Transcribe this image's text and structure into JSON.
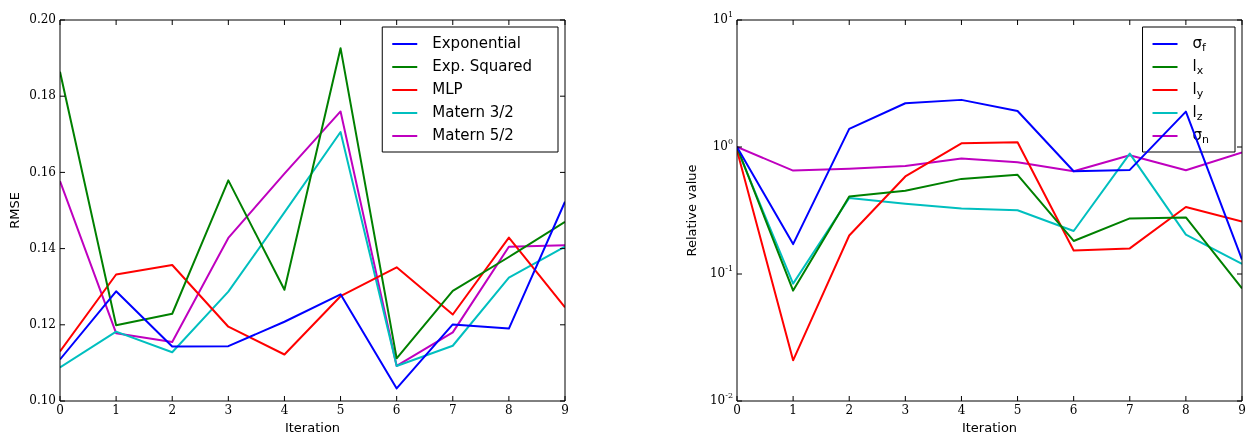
{
  "chart_data": [
    {
      "type": "line",
      "xlabel": "Iteration",
      "ylabel": "RMSE",
      "x": [
        0,
        1,
        2,
        3,
        4,
        5,
        6,
        7,
        8,
        9
      ],
      "xlim": [
        0,
        9
      ],
      "xticks": [
        0,
        1,
        2,
        3,
        4,
        5,
        6,
        7,
        8,
        9
      ],
      "ylim": [
        0.1,
        0.2
      ],
      "yticks": [
        {
          "value": 0.1,
          "label": "0.10"
        },
        {
          "value": 0.12,
          "label": "0.12"
        },
        {
          "value": 0.14,
          "label": "0.14"
        },
        {
          "value": 0.16,
          "label": "0.16"
        },
        {
          "value": 0.18,
          "label": "0.18"
        },
        {
          "value": 0.2,
          "label": "0.20"
        }
      ],
      "legend": "top right",
      "series": [
        {
          "name": "Exponential",
          "color": "#0000ff",
          "values": [
            0.1109,
            0.1288,
            0.1143,
            0.1144,
            0.1208,
            0.128,
            0.1033,
            0.1201,
            0.119,
            0.1523
          ]
        },
        {
          "name": "Exp. Squared",
          "color": "#008000",
          "values": [
            0.1864,
            0.1199,
            0.1229,
            0.1579,
            0.1292,
            0.1926,
            0.1112,
            0.1289,
            0.1378,
            0.147
          ]
        },
        {
          "name": "MLP",
          "color": "#ff0000",
          "values": [
            0.113,
            0.1332,
            0.1357,
            0.1195,
            0.1122,
            0.1275,
            0.1351,
            0.1227,
            0.1429,
            0.1246
          ]
        },
        {
          "name": "Matern 3/2",
          "color": "#00bfbf",
          "values": [
            0.1088,
            0.1182,
            0.1128,
            0.1287,
            0.1495,
            0.1706,
            0.1092,
            0.1145,
            0.1324,
            0.1405
          ]
        },
        {
          "name": "Matern 5/2",
          "color": "#bf00bf",
          "values": [
            0.1577,
            0.1178,
            0.1155,
            0.1428,
            0.1597,
            0.176,
            0.1092,
            0.118,
            0.1405,
            0.1409
          ]
        }
      ]
    },
    {
      "type": "line",
      "xlabel": "Iteration",
      "ylabel": "Relative value",
      "x": [
        0,
        1,
        2,
        3,
        4,
        5,
        6,
        7,
        8,
        9
      ],
      "xlim": [
        0,
        9
      ],
      "xticks": [
        0,
        1,
        2,
        3,
        4,
        5,
        6,
        7,
        8,
        9
      ],
      "ylim": [
        0.01,
        10
      ],
      "yticks": [
        {
          "value": 0.01,
          "label": "10$^{-2}$"
        },
        {
          "value": 0.1,
          "label": "10$^{-1}$"
        },
        {
          "value": 1,
          "label": "10$^{0}$"
        },
        {
          "value": 10,
          "label": "10$^{1}$"
        }
      ],
      "log": "y",
      "legend": "top right",
      "series": [
        {
          "name": "σ$_{f}$",
          "color": "#0000ff",
          "values": [
            1.0,
            0.172,
            1.39,
            2.21,
            2.35,
            1.92,
            0.644,
            0.66,
            1.9,
            0.13
          ]
        },
        {
          "name": "l$_{x}$",
          "color": "#008000",
          "values": [
            1.0,
            0.074,
            0.407,
            0.453,
            0.561,
            0.604,
            0.182,
            0.274,
            0.279,
            0.077
          ]
        },
        {
          "name": "l$_{y}$",
          "color": "#ff0000",
          "values": [
            0.94,
            0.0209,
            0.201,
            0.586,
            1.07,
            1.09,
            0.153,
            0.159,
            0.337,
            0.259
          ]
        },
        {
          "name": "l$_{z}$",
          "color": "#00bfbf",
          "values": [
            0.97,
            0.084,
            0.397,
            0.358,
            0.328,
            0.318,
            0.218,
            0.887,
            0.204,
            0.12
          ]
        },
        {
          "name": "σ$_{n}$",
          "color": "#bf00bf",
          "values": [
            1.0,
            0.652,
            0.673,
            0.708,
            0.813,
            0.758,
            0.644,
            0.86,
            0.656,
            0.904
          ]
        }
      ]
    }
  ]
}
